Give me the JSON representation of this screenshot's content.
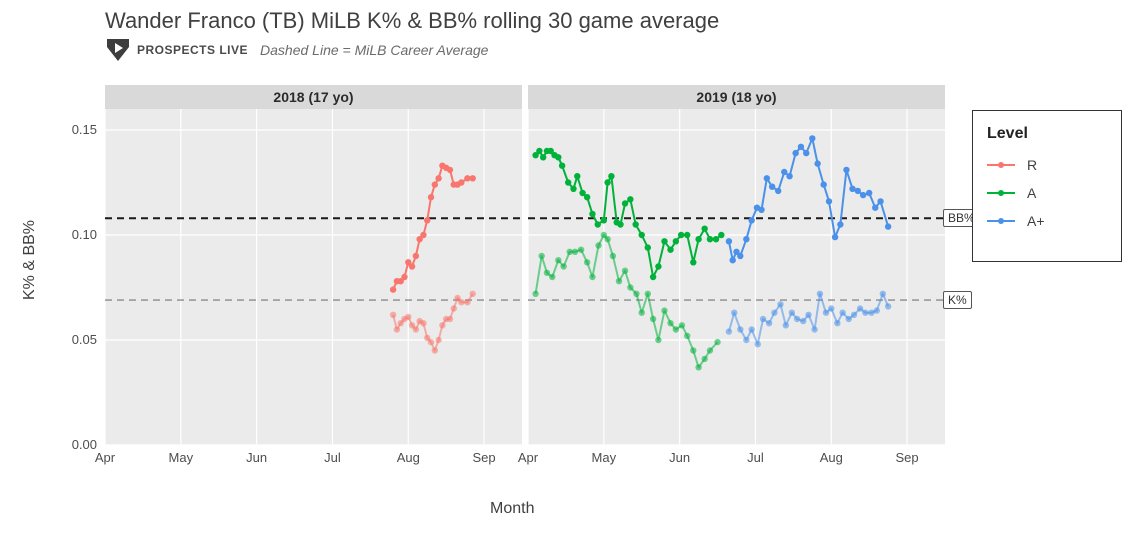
{
  "title": "Wander Franco (TB) MiLB K% & BB% rolling 30 game average",
  "logo_text": "PROSPECTS LIVE",
  "subtitle_note": "Dashed Line = MiLB Career Average",
  "y_axis_label": "K% & BB%",
  "x_axis_label": "Month",
  "legend": {
    "title": "Level",
    "items": [
      {
        "label": "R",
        "color": "#f8766d"
      },
      {
        "label": "A",
        "color": "#00b23a"
      },
      {
        "label": "A+",
        "color": "#4b91ea"
      }
    ]
  },
  "styling": {
    "background_color": "#ffffff",
    "panel_background": "#ebebeb",
    "strip_background": "#d9d9d9",
    "gridline_color": "#ffffff",
    "ref_line_dark": "#1a1a1a",
    "ref_line_light": "#9a9a9a",
    "title_fontsize": 22,
    "axis_title_fontsize": 16,
    "tick_fontsize": 13,
    "legend_fontsize": 14,
    "line_width": 2,
    "marker_radius": 3.2,
    "faded_opacity": 0.55
  },
  "y_axis": {
    "lim": [
      0.0,
      0.16
    ],
    "ticks": [
      0.0,
      0.05,
      0.1,
      0.15
    ],
    "tick_labels": [
      "0.00",
      "0.05",
      "0.10",
      "0.15"
    ]
  },
  "reference_lines": {
    "bb_pct": {
      "value": 0.108,
      "label": "BB%"
    },
    "k_pct": {
      "value": 0.069,
      "label": "K%"
    }
  },
  "facets": [
    {
      "label": "2018 (17 yo)",
      "x_domain": [
        0,
        5.5
      ],
      "x_ticks": [
        0,
        1,
        2,
        3,
        4,
        5
      ],
      "x_tick_labels": [
        "Apr",
        "May",
        "Jun",
        "Jul",
        "Aug",
        "Sep"
      ],
      "series": [
        {
          "level": "R",
          "color": "#f8766d",
          "metric": "BB%",
          "opacity": 1.0,
          "points": [
            [
              3.8,
              0.074
            ],
            [
              3.85,
              0.078
            ],
            [
              3.9,
              0.078
            ],
            [
              3.95,
              0.08
            ],
            [
              4.0,
              0.087
            ],
            [
              4.05,
              0.085
            ],
            [
              4.1,
              0.09
            ],
            [
              4.15,
              0.098
            ],
            [
              4.2,
              0.1
            ],
            [
              4.25,
              0.107
            ],
            [
              4.3,
              0.118
            ],
            [
              4.35,
              0.124
            ],
            [
              4.4,
              0.127
            ],
            [
              4.45,
              0.133
            ],
            [
              4.5,
              0.132
            ],
            [
              4.55,
              0.131
            ],
            [
              4.6,
              0.124
            ],
            [
              4.65,
              0.124
            ],
            [
              4.7,
              0.125
            ],
            [
              4.78,
              0.127
            ],
            [
              4.85,
              0.127
            ]
          ]
        },
        {
          "level": "R",
          "color": "#f8766d",
          "metric": "K%",
          "opacity": 0.55,
          "points": [
            [
              3.8,
              0.062
            ],
            [
              3.85,
              0.055
            ],
            [
              3.9,
              0.058
            ],
            [
              3.95,
              0.06
            ],
            [
              4.0,
              0.061
            ],
            [
              4.05,
              0.057
            ],
            [
              4.1,
              0.055
            ],
            [
              4.15,
              0.059
            ],
            [
              4.2,
              0.058
            ],
            [
              4.25,
              0.051
            ],
            [
              4.3,
              0.049
            ],
            [
              4.35,
              0.045
            ],
            [
              4.4,
              0.05
            ],
            [
              4.45,
              0.057
            ],
            [
              4.5,
              0.06
            ],
            [
              4.55,
              0.06
            ],
            [
              4.6,
              0.065
            ],
            [
              4.65,
              0.07
            ],
            [
              4.7,
              0.068
            ],
            [
              4.78,
              0.068
            ],
            [
              4.85,
              0.072
            ]
          ]
        }
      ]
    },
    {
      "label": "2019 (18 yo)",
      "x_domain": [
        0,
        5.5
      ],
      "x_ticks": [
        0,
        1,
        2,
        3,
        4,
        5
      ],
      "x_tick_labels": [
        "Apr",
        "May",
        "Jun",
        "Jul",
        "Aug",
        "Sep"
      ],
      "series": [
        {
          "level": "A",
          "color": "#00b23a",
          "metric": "BB%",
          "opacity": 1.0,
          "points": [
            [
              0.1,
              0.138
            ],
            [
              0.15,
              0.14
            ],
            [
              0.2,
              0.137
            ],
            [
              0.25,
              0.14
            ],
            [
              0.3,
              0.14
            ],
            [
              0.35,
              0.138
            ],
            [
              0.4,
              0.137
            ],
            [
              0.45,
              0.133
            ],
            [
              0.53,
              0.125
            ],
            [
              0.6,
              0.122
            ],
            [
              0.65,
              0.128
            ],
            [
              0.72,
              0.12
            ],
            [
              0.78,
              0.118
            ],
            [
              0.85,
              0.11
            ],
            [
              0.92,
              0.105
            ],
            [
              1.0,
              0.107
            ],
            [
              1.05,
              0.125
            ],
            [
              1.1,
              0.128
            ],
            [
              1.17,
              0.106
            ],
            [
              1.22,
              0.105
            ],
            [
              1.28,
              0.115
            ],
            [
              1.35,
              0.117
            ],
            [
              1.42,
              0.105
            ],
            [
              1.5,
              0.1
            ],
            [
              1.58,
              0.094
            ],
            [
              1.65,
              0.08
            ],
            [
              1.72,
              0.085
            ],
            [
              1.8,
              0.097
            ],
            [
              1.88,
              0.093
            ],
            [
              1.95,
              0.097
            ],
            [
              2.02,
              0.1
            ],
            [
              2.1,
              0.1
            ],
            [
              2.18,
              0.087
            ],
            [
              2.25,
              0.098
            ],
            [
              2.33,
              0.103
            ],
            [
              2.4,
              0.098
            ],
            [
              2.48,
              0.098
            ],
            [
              2.55,
              0.1
            ]
          ]
        },
        {
          "level": "A",
          "color": "#00b23a",
          "metric": "K%",
          "opacity": 0.55,
          "points": [
            [
              0.1,
              0.072
            ],
            [
              0.18,
              0.09
            ],
            [
              0.25,
              0.082
            ],
            [
              0.32,
              0.08
            ],
            [
              0.4,
              0.088
            ],
            [
              0.47,
              0.085
            ],
            [
              0.55,
              0.092
            ],
            [
              0.62,
              0.092
            ],
            [
              0.7,
              0.093
            ],
            [
              0.78,
              0.087
            ],
            [
              0.85,
              0.08
            ],
            [
              0.93,
              0.095
            ],
            [
              1.0,
              0.1
            ],
            [
              1.05,
              0.098
            ],
            [
              1.12,
              0.09
            ],
            [
              1.2,
              0.078
            ],
            [
              1.28,
              0.083
            ],
            [
              1.35,
              0.075
            ],
            [
              1.43,
              0.072
            ],
            [
              1.5,
              0.063
            ],
            [
              1.58,
              0.072
            ],
            [
              1.65,
              0.06
            ],
            [
              1.72,
              0.05
            ],
            [
              1.8,
              0.064
            ],
            [
              1.88,
              0.058
            ],
            [
              1.95,
              0.055
            ],
            [
              2.03,
              0.057
            ],
            [
              2.1,
              0.052
            ],
            [
              2.18,
              0.045
            ],
            [
              2.25,
              0.037
            ],
            [
              2.33,
              0.041
            ],
            [
              2.4,
              0.045
            ],
            [
              2.5,
              0.049
            ]
          ]
        },
        {
          "level": "A+",
          "color": "#4b91ea",
          "metric": "BB%",
          "opacity": 1.0,
          "points": [
            [
              2.65,
              0.097
            ],
            [
              2.7,
              0.088
            ],
            [
              2.75,
              0.092
            ],
            [
              2.8,
              0.09
            ],
            [
              2.88,
              0.098
            ],
            [
              2.95,
              0.107
            ],
            [
              3.02,
              0.113
            ],
            [
              3.08,
              0.112
            ],
            [
              3.15,
              0.127
            ],
            [
              3.22,
              0.123
            ],
            [
              3.3,
              0.121
            ],
            [
              3.38,
              0.13
            ],
            [
              3.45,
              0.128
            ],
            [
              3.53,
              0.139
            ],
            [
              3.6,
              0.142
            ],
            [
              3.67,
              0.139
            ],
            [
              3.75,
              0.146
            ],
            [
              3.82,
              0.134
            ],
            [
              3.9,
              0.124
            ],
            [
              3.97,
              0.116
            ],
            [
              4.05,
              0.099
            ],
            [
              4.12,
              0.105
            ],
            [
              4.2,
              0.131
            ],
            [
              4.28,
              0.122
            ],
            [
              4.35,
              0.121
            ],
            [
              4.42,
              0.119
            ],
            [
              4.5,
              0.12
            ],
            [
              4.58,
              0.113
            ],
            [
              4.65,
              0.116
            ],
            [
              4.75,
              0.104
            ]
          ]
        },
        {
          "level": "A+",
          "color": "#4b91ea",
          "metric": "K%",
          "opacity": 0.55,
          "points": [
            [
              2.65,
              0.054
            ],
            [
              2.72,
              0.063
            ],
            [
              2.8,
              0.055
            ],
            [
              2.88,
              0.05
            ],
            [
              2.95,
              0.055
            ],
            [
              3.03,
              0.048
            ],
            [
              3.1,
              0.06
            ],
            [
              3.18,
              0.058
            ],
            [
              3.25,
              0.063
            ],
            [
              3.33,
              0.067
            ],
            [
              3.4,
              0.057
            ],
            [
              3.48,
              0.063
            ],
            [
              3.55,
              0.06
            ],
            [
              3.63,
              0.059
            ],
            [
              3.7,
              0.062
            ],
            [
              3.78,
              0.055
            ],
            [
              3.85,
              0.072
            ],
            [
              3.93,
              0.063
            ],
            [
              4.0,
              0.065
            ],
            [
              4.08,
              0.058
            ],
            [
              4.15,
              0.063
            ],
            [
              4.23,
              0.06
            ],
            [
              4.3,
              0.062
            ],
            [
              4.38,
              0.065
            ],
            [
              4.45,
              0.063
            ],
            [
              4.53,
              0.063
            ],
            [
              4.6,
              0.064
            ],
            [
              4.68,
              0.072
            ],
            [
              4.75,
              0.066
            ]
          ]
        }
      ]
    }
  ]
}
